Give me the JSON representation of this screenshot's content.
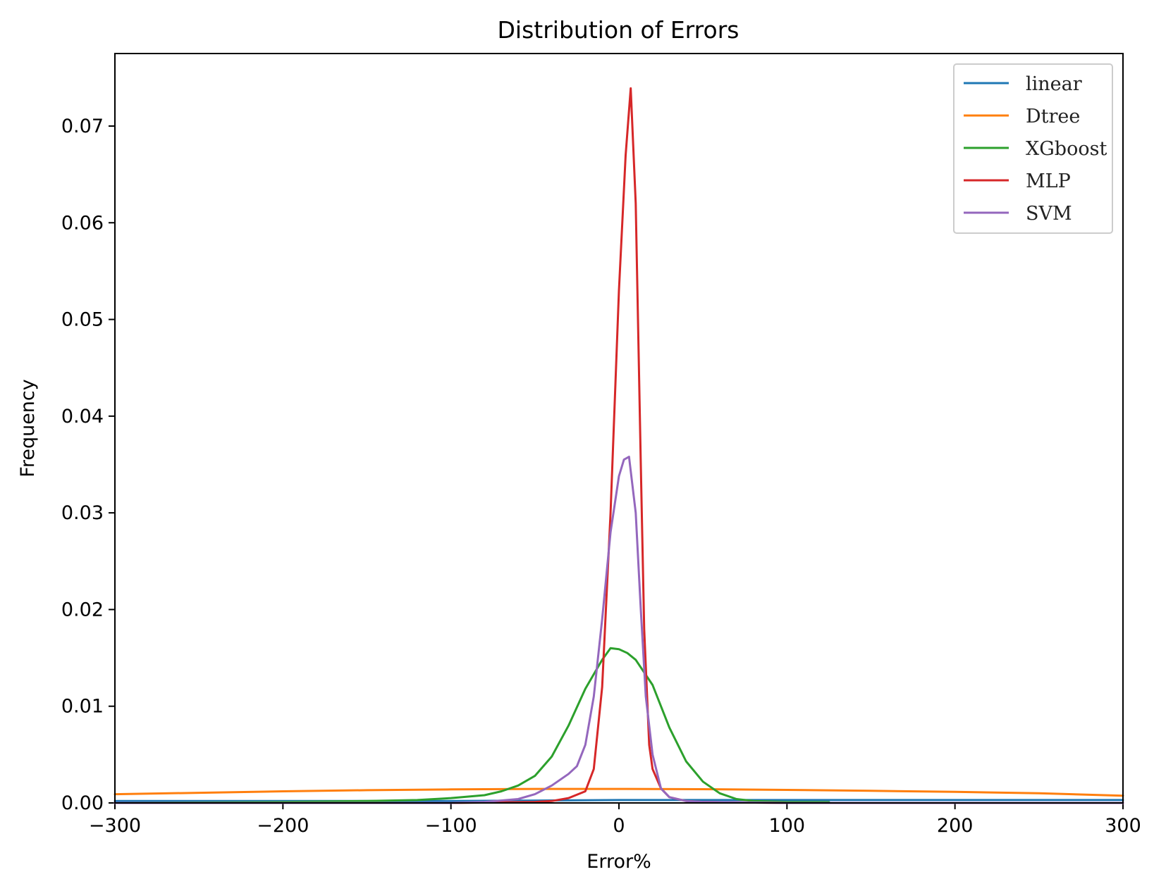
{
  "chart_data": {
    "type": "line",
    "title": "Distribution of Errors",
    "xlabel": "Error%",
    "ylabel": "Frequency",
    "xlim": [
      -300,
      300
    ],
    "ylim": [
      0,
      0.0775
    ],
    "xticks": [
      -300,
      -200,
      -100,
      0,
      100,
      200,
      300
    ],
    "xtick_labels": [
      "−300",
      "−200",
      "−100",
      "0",
      "100",
      "200",
      "300"
    ],
    "yticks": [
      0,
      0.01,
      0.02,
      0.03,
      0.04,
      0.05,
      0.06,
      0.07
    ],
    "ytick_labels": [
      "0.00",
      "0.01",
      "0.02",
      "0.03",
      "0.04",
      "0.05",
      "0.06",
      "0.07"
    ],
    "grid": false,
    "legend_position": "top-right",
    "series": [
      {
        "name": "linear",
        "color": "#1f77b4",
        "x": [
          -300,
          -200,
          -100,
          0,
          100,
          200,
          300
        ],
        "y": [
          0.0002,
          0.0002,
          0.0002,
          0.0003,
          0.0003,
          0.0003,
          0.0003
        ]
      },
      {
        "name": "Dtree",
        "color": "#ff7f0e",
        "x": [
          -300,
          -250,
          -200,
          -150,
          -100,
          -50,
          0,
          50,
          100,
          150,
          200,
          250,
          300
        ],
        "y": [
          0.0009,
          0.00105,
          0.0012,
          0.00132,
          0.0014,
          0.00145,
          0.00145,
          0.00142,
          0.00135,
          0.00125,
          0.00115,
          0.001,
          0.00075
        ]
      },
      {
        "name": "XGboost",
        "color": "#2ca02c",
        "x": [
          -300,
          -200,
          -150,
          -120,
          -100,
          -80,
          -70,
          -60,
          -50,
          -40,
          -30,
          -20,
          -10,
          -5,
          0,
          5,
          10,
          20,
          30,
          40,
          50,
          60,
          70,
          80,
          100,
          125
        ],
        "y": [
          0.0,
          0.0001,
          0.0002,
          0.0003,
          0.0005,
          0.0008,
          0.0012,
          0.0018,
          0.0028,
          0.0048,
          0.008,
          0.0118,
          0.0148,
          0.016,
          0.0159,
          0.0155,
          0.0148,
          0.0122,
          0.0078,
          0.0043,
          0.0022,
          0.001,
          0.0004,
          0.0002,
          0.0001,
          0.0001
        ]
      },
      {
        "name": "MLP",
        "color": "#d62728",
        "x": [
          -300,
          -100,
          -50,
          -40,
          -30,
          -20,
          -15,
          -10,
          -5,
          0,
          4,
          7,
          10,
          13,
          15,
          18,
          20,
          25,
          30,
          40,
          50,
          100,
          300
        ],
        "y": [
          0.0,
          0.0,
          0.0001,
          0.0002,
          0.0005,
          0.0012,
          0.0035,
          0.012,
          0.03,
          0.053,
          0.067,
          0.0739,
          0.062,
          0.035,
          0.018,
          0.006,
          0.0035,
          0.0015,
          0.0006,
          0.0002,
          0.0001,
          0.0,
          0.0
        ]
      },
      {
        "name": "SVM",
        "color": "#9467bd",
        "x": [
          -300,
          -100,
          -80,
          -60,
          -50,
          -40,
          -30,
          -25,
          -20,
          -15,
          -10,
          -5,
          0,
          3,
          6,
          10,
          13,
          16,
          20,
          25,
          30,
          40,
          50,
          100,
          300
        ],
        "y": [
          0.0,
          0.0,
          0.0001,
          0.0004,
          0.0009,
          0.0018,
          0.003,
          0.0038,
          0.006,
          0.011,
          0.019,
          0.028,
          0.0338,
          0.0355,
          0.0358,
          0.03,
          0.02,
          0.011,
          0.005,
          0.0015,
          0.0006,
          0.0002,
          0.0001,
          0.0,
          0.0
        ]
      }
    ]
  }
}
